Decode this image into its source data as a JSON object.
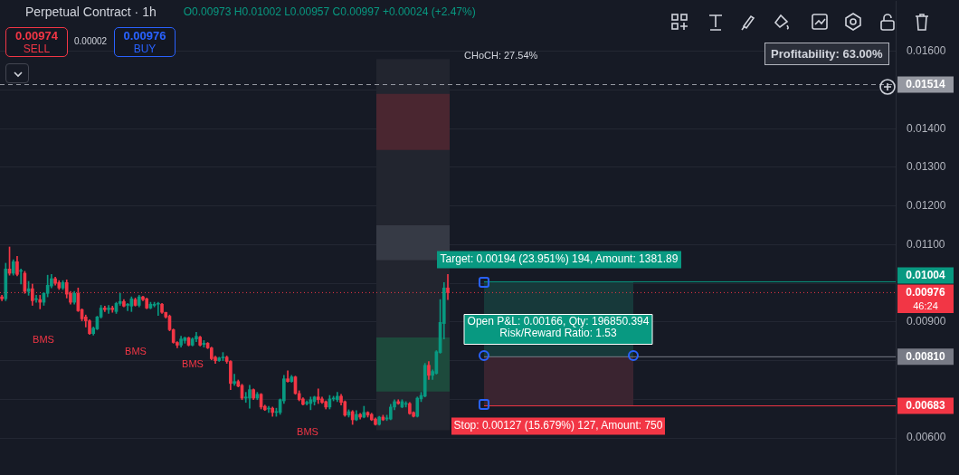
{
  "chart_data": {
    "type": "candlestick",
    "title": "Perpetual Contract · 1h",
    "subtitle": "O0.00973 H0.01002 L0.00957 C0.00997 +0.00024 (+2.47%)",
    "categories": [
      null,
      null,
      null,
      null,
      null,
      null,
      null,
      null,
      null,
      null,
      null,
      null,
      null,
      null,
      null,
      null,
      null,
      null,
      null,
      null,
      null,
      null,
      null,
      null,
      null,
      null,
      null,
      null,
      null,
      null,
      null,
      null,
      null,
      null,
      null,
      null,
      null,
      null,
      null,
      null,
      null,
      null,
      null,
      null,
      null,
      null,
      null,
      null,
      null,
      null,
      null,
      null,
      null,
      null,
      null,
      null,
      null,
      null,
      null,
      null,
      null,
      null,
      null,
      null,
      null,
      null,
      null,
      null,
      null,
      null,
      null,
      null,
      null,
      null,
      null,
      null,
      null,
      null,
      null,
      null,
      null,
      null,
      null,
      null,
      null,
      null,
      null,
      null,
      null,
      null,
      null,
      null,
      null,
      null,
      null,
      null,
      null,
      null,
      null,
      null,
      null,
      null,
      null,
      null,
      null,
      null,
      null,
      null,
      null,
      null,
      null,
      null,
      null,
      null,
      null,
      null,
      null,
      null,
      null,
      null,
      null,
      null,
      null,
      null,
      null,
      null,
      null,
      null,
      null,
      null,
      null,
      null,
      null,
      null,
      null,
      null,
      null,
      null,
      null,
      null,
      null,
      null,
      null,
      null,
      null,
      null,
      null,
      null,
      null,
      null,
      null,
      null,
      null,
      null,
      null,
      null,
      null,
      null,
      null,
      null,
      null,
      null,
      null,
      null,
      null,
      null,
      null,
      null,
      null,
      null,
      null,
      null,
      null,
      null,
      null,
      null,
      null,
      null,
      null,
      null,
      null,
      null,
      null,
      null,
      null,
      null,
      null,
      null,
      null,
      null,
      null,
      null,
      null,
      null,
      null,
      null,
      null,
      null,
      null,
      null,
      null,
      null,
      null,
      null,
      null,
      null,
      null,
      null,
      null,
      null,
      null,
      null,
      null,
      null,
      null,
      null,
      null,
      null,
      null,
      null,
      null,
      null,
      null,
      null,
      null,
      null,
      null,
      null,
      null,
      null,
      null,
      null,
      null,
      null,
      null
    ],
    "ohlc": [
      [
        0.00965,
        0.00969,
        0.00955,
        0.0096
      ],
      [
        0.0096,
        0.01052,
        0.00955,
        0.01037
      ],
      [
        0.01037,
        0.01094,
        0.01021,
        0.01026
      ],
      [
        0.01026,
        0.01061,
        0.01021,
        0.01056
      ],
      [
        0.01056,
        0.0107,
        0.01019,
        0.01023
      ],
      [
        0.01031,
        0.01037,
        0.00998,
        0.01033
      ],
      [
        0.01026,
        0.01031,
        0.00974,
        0.00979
      ],
      [
        0.00979,
        0.01005,
        0.00969,
        0.00986
      ],
      [
        0.00986,
        0.00998,
        0.00943,
        0.00955
      ],
      [
        0.00958,
        0.00969,
        0.00951,
        0.0096
      ],
      [
        0.00958,
        0.00969,
        0.00934,
        0.00951
      ],
      [
        0.00951,
        0.00976,
        0.00943,
        0.00974
      ],
      [
        0.00974,
        0.01021,
        0.00965,
        0.00995
      ],
      [
        0.00993,
        0.01023,
        0.00988,
        0.01012
      ],
      [
        0.01012,
        0.01016,
        0.00995,
        0.01
      ],
      [
        0.01002,
        0.01007,
        0.00984,
        0.00988
      ],
      [
        0.00988,
        0.01007,
        0.00984,
        0.01002
      ],
      [
        0.01002,
        0.01009,
        0.00962,
        0.00972
      ],
      [
        0.00974,
        0.00979,
        0.00946,
        0.00951
      ],
      [
        0.00951,
        0.00979,
        0.00946,
        0.00974
      ],
      [
        0.00974,
        0.00988,
        0.00927,
        0.00929
      ],
      [
        0.00932,
        0.00934,
        0.00903,
        0.00908
      ],
      [
        0.00913,
        0.00918,
        0.00887,
        0.00903
      ],
      [
        0.00903,
        0.00906,
        0.00868,
        0.0087
      ],
      [
        0.0087,
        0.00887,
        0.00866,
        0.00884
      ],
      [
        0.00882,
        0.00915,
        0.0088,
        0.00913
      ],
      [
        0.00913,
        0.00943,
        0.0091,
        0.00936
      ],
      [
        0.00936,
        0.00941,
        0.00927,
        0.00932
      ],
      [
        0.00932,
        0.00943,
        0.00922,
        0.00936
      ],
      [
        0.00936,
        0.00941,
        0.00925,
        0.00932
      ],
      [
        0.00927,
        0.00951,
        0.00922,
        0.00948
      ],
      [
        0.00948,
        0.00974,
        0.00943,
        0.00953
      ],
      [
        0.00953,
        0.00958,
        0.00939,
        0.00941
      ],
      [
        0.00943,
        0.00948,
        0.00929,
        0.00946
      ],
      [
        0.00941,
        0.00965,
        0.00927,
        0.0096
      ],
      [
        0.00958,
        0.00962,
        0.00941,
        0.00943
      ],
      [
        0.00943,
        0.00969,
        0.00939,
        0.00965
      ],
      [
        0.00965,
        0.00967,
        0.00955,
        0.00958
      ],
      [
        0.0096,
        0.00962,
        0.00934,
        0.00936
      ],
      [
        0.00936,
        0.00951,
        0.00934,
        0.00946
      ],
      [
        0.00943,
        0.00951,
        0.00939,
        0.00946
      ],
      [
        0.00946,
        0.00951,
        0.00917,
        0.00948
      ],
      [
        0.00946,
        0.00948,
        0.00922,
        0.00925
      ],
      [
        0.00925,
        0.00925,
        0.0091,
        0.00913
      ],
      [
        0.00915,
        0.00918,
        0.00877,
        0.0088
      ],
      [
        0.0088,
        0.00882,
        0.00845,
        0.00847
      ],
      [
        0.00847,
        0.00849,
        0.00833,
        0.0084
      ],
      [
        0.0084,
        0.00863,
        0.00835,
        0.00856
      ],
      [
        0.00852,
        0.00861,
        0.00845,
        0.00859
      ],
      [
        0.00859,
        0.00861,
        0.00838,
        0.0084
      ],
      [
        0.0084,
        0.00859,
        0.00838,
        0.00856
      ],
      [
        0.00856,
        0.00873,
        0.00849,
        0.00863
      ],
      [
        0.00861,
        0.00863,
        0.00838,
        0.0084
      ],
      [
        0.00842,
        0.00852,
        0.00835,
        0.00845
      ],
      [
        0.00845,
        0.00847,
        0.00831,
        0.00833
      ],
      [
        0.00833,
        0.00835,
        0.00802,
        0.00805
      ],
      [
        0.00809,
        0.00812,
        0.00793,
        0.008
      ],
      [
        0.008,
        0.00809,
        0.00798,
        0.00807
      ],
      [
        0.00807,
        0.00821,
        0.008,
        0.00809
      ],
      [
        0.00809,
        0.00812,
        0.00793,
        0.00798
      ],
      [
        0.00798,
        0.008,
        0.00725,
        0.00741
      ],
      [
        0.00741,
        0.00765,
        0.00736,
        0.00746
      ],
      [
        0.00746,
        0.0075,
        0.00732,
        0.00734
      ],
      [
        0.00736,
        0.00739,
        0.00699,
        0.00703
      ],
      [
        0.00703,
        0.00718,
        0.00692,
        0.00706
      ],
      [
        0.00703,
        0.00736,
        0.00677,
        0.00725
      ],
      [
        0.00725,
        0.00727,
        0.00699,
        0.00703
      ],
      [
        0.00703,
        0.00718,
        0.00699,
        0.00713
      ],
      [
        0.00713,
        0.00715,
        0.00675,
        0.0068
      ],
      [
        0.00682,
        0.00685,
        0.00671,
        0.00673
      ],
      [
        0.00675,
        0.00682,
        0.00666,
        0.00677
      ],
      [
        0.00677,
        0.0068,
        0.00656,
        0.00666
      ],
      [
        0.00666,
        0.00677,
        0.00656,
        0.00668
      ],
      [
        0.00666,
        0.00701,
        0.00661,
        0.00699
      ],
      [
        0.00696,
        0.00762,
        0.00689,
        0.00753
      ],
      [
        0.00753,
        0.00774,
        0.00744,
        0.00746
      ],
      [
        0.00746,
        0.00762,
        0.00744,
        0.00758
      ],
      [
        0.00758,
        0.0076,
        0.00713,
        0.00715
      ],
      [
        0.00715,
        0.00722,
        0.00696,
        0.00699
      ],
      [
        0.00701,
        0.00704,
        0.00685,
        0.00687
      ],
      [
        0.00689,
        0.00696,
        0.00685,
        0.00692
      ],
      [
        0.00689,
        0.00706,
        0.00673,
        0.00699
      ],
      [
        0.00694,
        0.00708,
        0.00685,
        0.00706
      ],
      [
        0.00706,
        0.00727,
        0.00689,
        0.00699
      ],
      [
        0.00701,
        0.00706,
        0.00689,
        0.00692
      ],
      [
        0.00694,
        0.00696,
        0.00675,
        0.0068
      ],
      [
        0.0068,
        0.0071,
        0.00675,
        0.00701
      ],
      [
        0.00701,
        0.00708,
        0.00696,
        0.00703
      ],
      [
        0.00699,
        0.00718,
        0.00694,
        0.00708
      ],
      [
        0.00708,
        0.00713,
        0.00685,
        0.00692
      ],
      [
        0.00694,
        0.00696,
        0.00656,
        0.00659
      ],
      [
        0.00659,
        0.00673,
        0.00654,
        0.00668
      ],
      [
        0.00668,
        0.00671,
        0.00635,
        0.00647
      ],
      [
        0.00647,
        0.00671,
        0.00645,
        0.00661
      ],
      [
        0.00661,
        0.00664,
        0.00649,
        0.00654
      ],
      [
        0.00654,
        0.00682,
        0.00652,
        0.00666
      ],
      [
        0.00666,
        0.00668,
        0.00654,
        0.00659
      ],
      [
        0.00661,
        0.00664,
        0.00645,
        0.00647
      ],
      [
        0.00649,
        0.00652,
        0.00633,
        0.00635
      ],
      [
        0.00635,
        0.00656,
        0.00633,
        0.00654
      ],
      [
        0.00654,
        0.00659,
        0.00645,
        0.00647
      ],
      [
        0.00649,
        0.00659,
        0.00645,
        0.00652
      ],
      [
        0.00649,
        0.00687,
        0.00647,
        0.0068
      ],
      [
        0.0068,
        0.00699,
        0.00673,
        0.00694
      ],
      [
        0.00694,
        0.00699,
        0.00687,
        0.00689
      ],
      [
        0.0068,
        0.00699,
        0.00678,
        0.00694
      ],
      [
        0.00687,
        0.00694,
        0.0068,
        0.00689
      ],
      [
        0.00689,
        0.00692,
        0.00661,
        0.00663
      ],
      [
        0.00666,
        0.00668,
        0.00654,
        0.00656
      ],
      [
        0.00656,
        0.00706,
        0.00654,
        0.00703
      ],
      [
        0.00701,
        0.00718,
        0.00694,
        0.0071
      ],
      [
        0.00708,
        0.00793,
        0.00706,
        0.00788
      ],
      [
        0.00788,
        0.00798,
        0.00751,
        0.00762
      ],
      [
        0.00762,
        0.00776,
        0.00751,
        0.00772
      ],
      [
        0.00767,
        0.00826,
        0.00765,
        0.00823
      ],
      [
        0.00821,
        0.00958,
        0.00819,
        0.00899
      ],
      [
        0.00896,
        0.01002,
        0.00856,
        0.00988
      ],
      [
        0.00988,
        0.01023,
        0.00958,
        0.00976
      ],
      null,
      null,
      null,
      null,
      null,
      null,
      null,
      null,
      null,
      null,
      null,
      null,
      null,
      null,
      null,
      null,
      null,
      null,
      null,
      null,
      null,
      null,
      null,
      null,
      null,
      null,
      null,
      null,
      null,
      null,
      null,
      null,
      null,
      null,
      null,
      null,
      null,
      null,
      null,
      null,
      null,
      null,
      null,
      null,
      null,
      null,
      null,
      null,
      null,
      null,
      null,
      null,
      null,
      null,
      null,
      null,
      null,
      null,
      null,
      null,
      null,
      null,
      null,
      null,
      null,
      null,
      null,
      null,
      null,
      null,
      null,
      null,
      null,
      null,
      null,
      null,
      null,
      null,
      null,
      null,
      null,
      null,
      null,
      null,
      null,
      null,
      null,
      null,
      null,
      null,
      null,
      null,
      null,
      null,
      null,
      null,
      null,
      null,
      null,
      null,
      null,
      null,
      null,
      null,
      null,
      null,
      null,
      null,
      null,
      null,
      null,
      null,
      null,
      null,
      null,
      null,
      null
    ],
    "ylim": [
      0.005,
      0.0173
    ],
    "yticks": [
      {
        "value": 0.006,
        "label": "0.00600"
      },
      {
        "value": 0.007,
        "label": null
      },
      {
        "value": 0.008,
        "label": null
      },
      {
        "value": 0.009,
        "label": "0.00900"
      },
      {
        "value": 0.01,
        "label": null
      },
      {
        "value": 0.011,
        "label": "0.01100"
      },
      {
        "value": 0.012,
        "label": "0.01200"
      },
      {
        "value": 0.013,
        "label": "0.01300"
      },
      {
        "value": 0.014,
        "label": "0.01400"
      },
      {
        "value": 0.015,
        "label": null
      },
      {
        "value": 0.016,
        "label": "0.01600"
      }
    ],
    "tick_labels": "y",
    "grid": "y",
    "legend": false,
    "ref_lines": [
      {
        "axis": "y",
        "value": 0.01514,
        "label": "0.01514",
        "color": "#9598a1",
        "line_style": "dashed"
      },
      {
        "axis": "y",
        "value": 0.00976,
        "label": "0.00976",
        "color": "#f23645",
        "line_style": "dotted"
      },
      {
        "axis": "y",
        "value": 0.01004,
        "label": "0.01004",
        "color": "#089981"
      },
      {
        "axis": "y",
        "value": 0.0081,
        "label": "0.00810",
        "color": "#787b86"
      },
      {
        "axis": "y",
        "value": 0.00683,
        "label": "0.00683",
        "color": "#f23645"
      }
    ],
    "bands": [
      {
        "axis": "y",
        "from": 0.0081,
        "to": 0.01004,
        "color": "#17393a"
      },
      {
        "axis": "y",
        "from": 0.00683,
        "to": 0.0081,
        "color": "#3a2430"
      },
      {
        "axis": "y",
        "from": 0.0062,
        "to": 0.0158,
        "color": "#22252f"
      },
      {
        "axis": "y",
        "from": 0.01345,
        "to": 0.0149,
        "color": "#4a2630"
      },
      {
        "axis": "y",
        "from": 0.0106,
        "to": 0.0115,
        "color": "#363a45"
      },
      {
        "axis": "y",
        "from": 0.0072,
        "to": 0.0086,
        "color": "#1d4a3c"
      }
    ],
    "annotations": [
      "0.00974",
      "SELL",
      "0.00002",
      "0.00976",
      "BUY",
      "CHoCH: 27.54%",
      "BMS",
      "BMS",
      "BMS",
      "BMS",
      "Target: 0.00194 (23.951%) 194, Amount: 1381.89",
      "Open P&L: 0.00166, Qty: 196850.394",
      "Risk/Reward Ratio: 1.53",
      "Stop: 0.00127 (15.679%) 127, Amount: 750",
      "Profitability: 63.00%",
      "46:24"
    ]
  }
}
